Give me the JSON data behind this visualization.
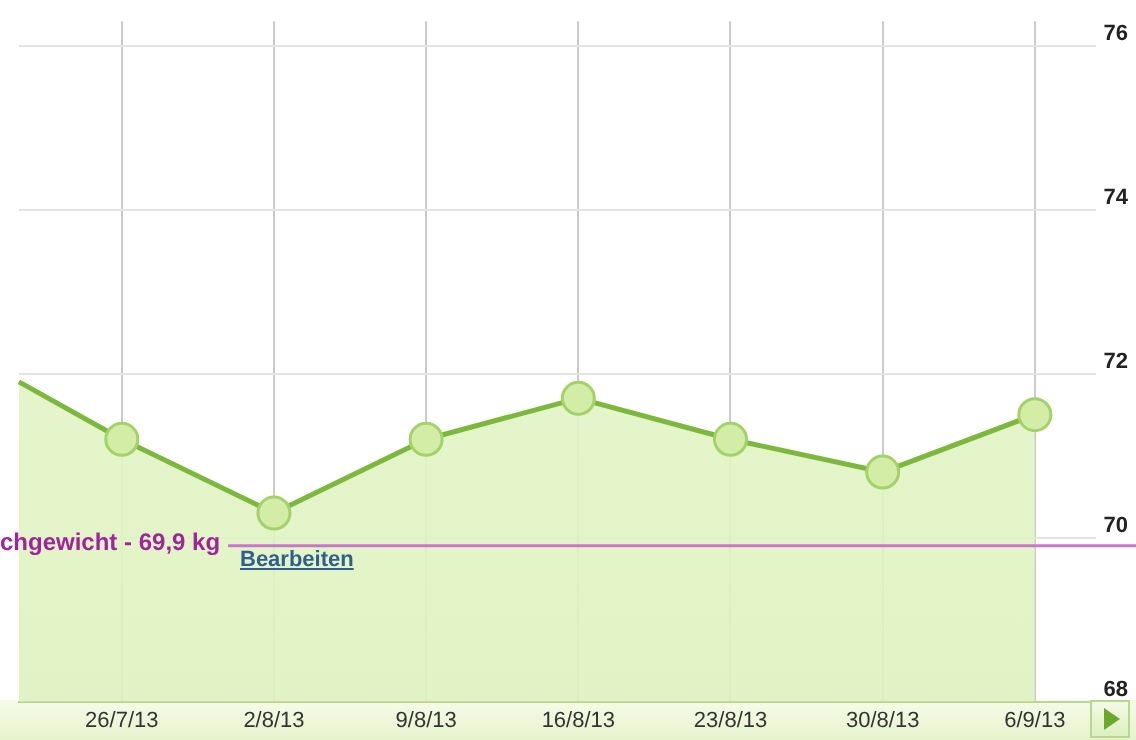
{
  "chart_data": {
    "type": "area",
    "x": [
      "--07-21T06:30",
      "--07-26",
      "--08-02",
      "--08-09",
      "--08-16",
      "--08-23",
      "--08-30",
      "--09-06"
    ],
    "series": [
      {
        "color": "#7cb83c",
        "values": [
          71.9,
          71.2,
          70.3,
          71.2,
          71.7,
          71.2,
          70.8,
          71.5
        ]
      }
    ],
    "xlim": [
      "--07-21T06:30",
      "--09-08T19:00"
    ],
    "xticks": [
      {
        "value": "--07-26",
        "label": "26/7/13"
      },
      {
        "value": "--08-02",
        "label": "2/8/13"
      },
      {
        "value": "--08-09",
        "label": "9/8/13"
      },
      {
        "value": "--08-16",
        "label": "16/8/13"
      },
      {
        "value": "--08-23",
        "label": "23/8/13"
      },
      {
        "value": "--08-30",
        "label": "30/8/13"
      },
      {
        "value": "--09-06",
        "label": "6/9/13"
      }
    ],
    "ylim": [
      68,
      76.3
    ],
    "yticks": [
      68,
      70,
      72,
      74,
      76
    ],
    "ref_lines": [
      {
        "axis": "y",
        "value": 69.9,
        "label": "chgewicht - 69,9 kg",
        "color": "#c878c8"
      }
    ],
    "annotations": [
      "Bearbeiten"
    ],
    "grid": true,
    "legend": false,
    "marker": "circle",
    "line_style": "solid"
  }
}
